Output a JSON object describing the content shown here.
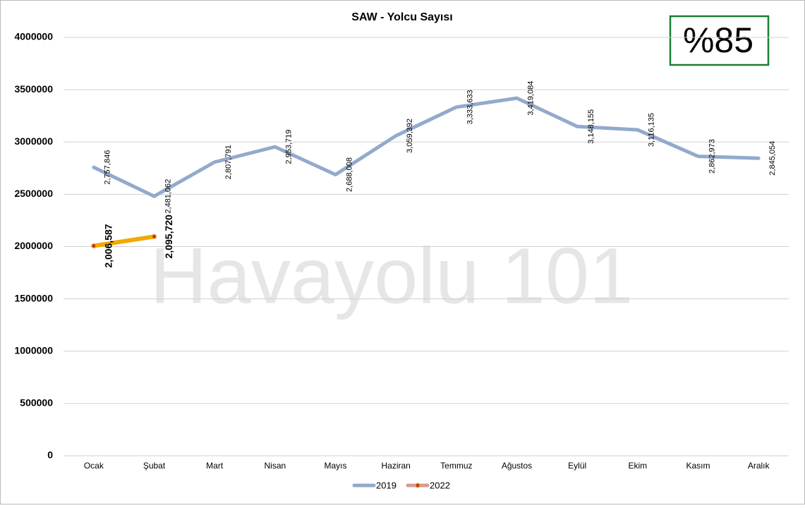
{
  "chart_data": {
    "type": "line",
    "title": "SAW - Yolcu Sayısı",
    "categories": [
      "Ocak",
      "Şubat",
      "Mart",
      "Nisan",
      "Mayıs",
      "Haziran",
      "Temmuz",
      "Ağustos",
      "Eylül",
      "Ekim",
      "Kasım",
      "Aralık"
    ],
    "series": [
      {
        "name": "2019",
        "color": "#92aacb",
        "values": [
          2757846,
          2481062,
          2807791,
          2953719,
          2688008,
          3059392,
          3333633,
          3419084,
          3148155,
          3116135,
          2862973,
          2845054
        ],
        "value_labels": [
          "2,757,846",
          "2,481,062",
          "2,807,791",
          "2,953,719",
          "2,688,008",
          "3,059,392",
          "3,333,633",
          "3,419,084",
          "3,148,155",
          "3,116,135",
          "2,862,973",
          "2,845,054"
        ]
      },
      {
        "name": "2022",
        "color": "#f2a900",
        "marker_color": "#c0392b",
        "legend_color": "#d99a94",
        "values": [
          2006587,
          2095720,
          null,
          null,
          null,
          null,
          null,
          null,
          null,
          null,
          null,
          null
        ],
        "value_labels": [
          "2,006,587",
          "2,095,720",
          null,
          null,
          null,
          null,
          null,
          null,
          null,
          null,
          null,
          null
        ]
      }
    ],
    "ylim": [
      0,
      4000000
    ],
    "yticks": [
      0,
      500000,
      1000000,
      1500000,
      2000000,
      2500000,
      3000000,
      3500000,
      4000000
    ],
    "grid": true,
    "legend": "bottom",
    "annotation": "%85",
    "watermark": "Havayolu 101"
  }
}
